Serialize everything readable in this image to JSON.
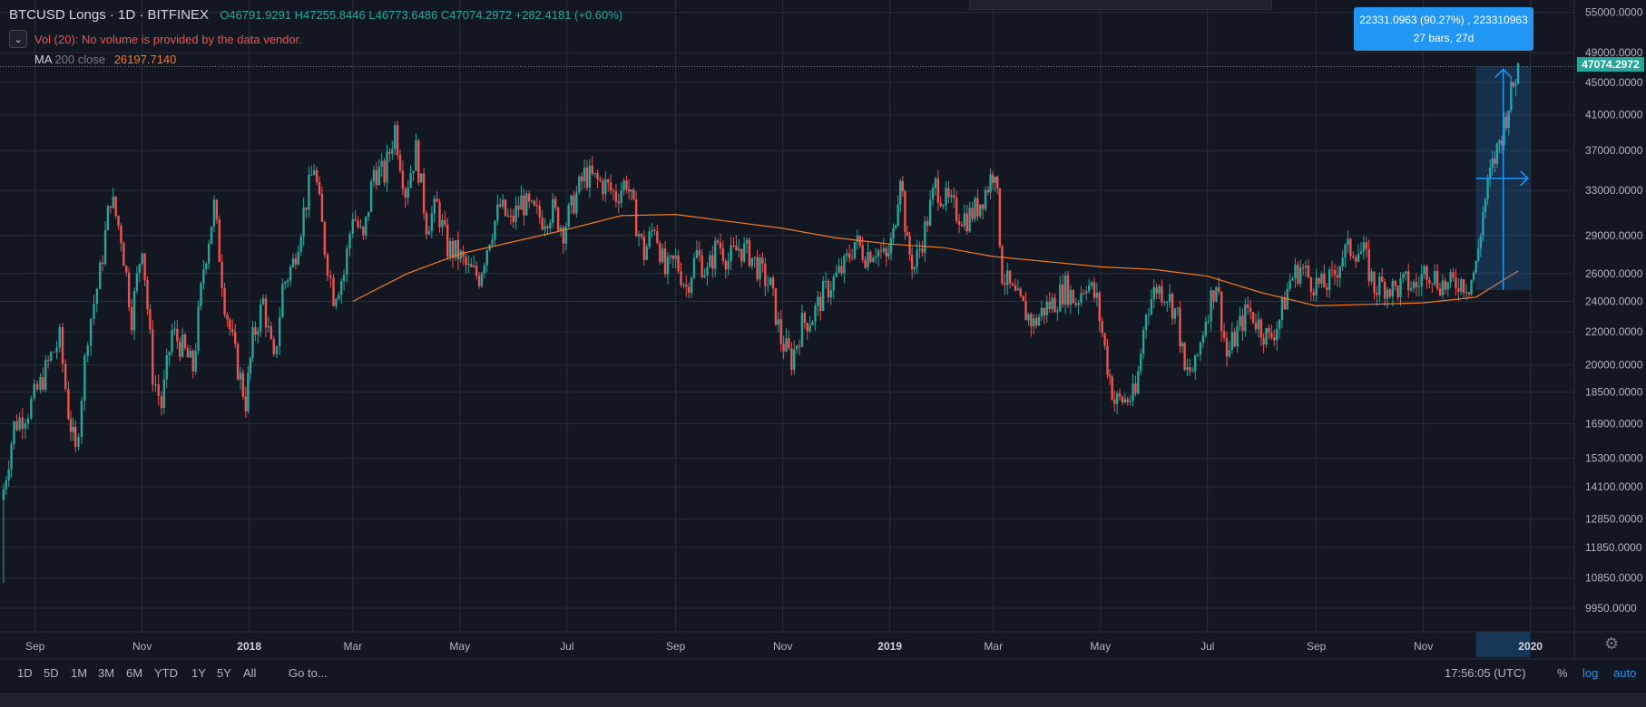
{
  "header": {
    "symbol": "BTCUSD Longs · 1D · BITFINEX",
    "open": "O46791.9291",
    "high": "H47255.8446",
    "low": "L46773.6486",
    "close": "C47074.2972",
    "change": "+282.4181 (+0.60%)"
  },
  "volume_note": "Vol (20): No volume is provided by the data vendor.",
  "ma": {
    "label": "MA",
    "params": "200 close",
    "value": "26197.7140"
  },
  "measure": {
    "line1": "22331.0963 (90.27%) , 223310963",
    "line2": "27 bars, 27d"
  },
  "last_price": "47074.2972",
  "bottom": {
    "ranges": [
      "1D",
      "5D",
      "1M",
      "3M",
      "6M",
      "YTD",
      "1Y",
      "5Y",
      "All"
    ],
    "goto": "Go to...",
    "clock": "17:56:05 (UTC)",
    "percent": "%",
    "log": "log",
    "auto": "auto"
  },
  "colors": {
    "bg": "#131722",
    "up": "#26a69a",
    "down": "#ef5350",
    "ma": "#f57c20",
    "grid": "#2a2e39",
    "accent": "#2196f3"
  },
  "chart_data": {
    "type": "line",
    "title": "BTCUSD Longs · 1D · BITFINEX",
    "scale": "log",
    "ylim": [
      9300,
      57000
    ],
    "y_ticks": [
      55000,
      49000,
      45000,
      41000,
      37000,
      33000,
      29000,
      26000,
      24000,
      22000,
      20000,
      18500,
      16900,
      15300,
      14100,
      12850,
      11850,
      10850,
      9950
    ],
    "x_ticks": [
      "Sep",
      "Nov",
      "2018",
      "Mar",
      "May",
      "Jul",
      "Sep",
      "Nov",
      "2019",
      "Mar",
      "May",
      "Jul",
      "Sep",
      "Nov",
      "2020"
    ],
    "x_range": [
      "2017-08-12",
      "2020-01-26"
    ],
    "series": [
      {
        "name": "BTCUSD Longs",
        "style": "candles",
        "points": [
          [
            "2017-08-14",
            14000
          ],
          [
            "2017-08-20",
            16800
          ],
          [
            "2017-08-28",
            17600
          ],
          [
            "2017-09-04",
            18900
          ],
          [
            "2017-09-10",
            20500
          ],
          [
            "2017-09-15",
            21500
          ],
          [
            "2017-09-20",
            17500
          ],
          [
            "2017-09-24",
            15500
          ],
          [
            "2017-10-01",
            22000
          ],
          [
            "2017-10-08",
            26000
          ],
          [
            "2017-10-14",
            32500
          ],
          [
            "2017-10-20",
            29000
          ],
          [
            "2017-10-26",
            23000
          ],
          [
            "2017-11-01",
            28500
          ],
          [
            "2017-11-07",
            19500
          ],
          [
            "2017-11-12",
            17800
          ],
          [
            "2017-11-18",
            22000
          ],
          [
            "2017-11-24",
            21000
          ],
          [
            "2017-11-30",
            19800
          ],
          [
            "2017-12-06",
            26500
          ],
          [
            "2017-12-12",
            31500
          ],
          [
            "2017-12-18",
            24000
          ],
          [
            "2017-12-24",
            20500
          ],
          [
            "2017-12-30",
            18000
          ],
          [
            "2018-01-03",
            21500
          ],
          [
            "2018-01-09",
            24000
          ],
          [
            "2018-01-15",
            20000
          ],
          [
            "2018-01-20",
            25000
          ],
          [
            "2018-01-26",
            26800
          ],
          [
            "2018-02-01",
            31000
          ],
          [
            "2018-02-07",
            35500
          ],
          [
            "2018-02-13",
            28000
          ],
          [
            "2018-02-18",
            24500
          ],
          [
            "2018-02-24",
            26000
          ],
          [
            "2018-03-01",
            31000
          ],
          [
            "2018-03-07",
            28500
          ],
          [
            "2018-03-13",
            35000
          ],
          [
            "2018-03-19",
            34500
          ],
          [
            "2018-03-25",
            39500
          ],
          [
            "2018-03-31",
            33000
          ],
          [
            "2018-04-06",
            37000
          ],
          [
            "2018-04-12",
            30000
          ],
          [
            "2018-04-18",
            31500
          ],
          [
            "2018-04-24",
            28000
          ],
          [
            "2018-04-30",
            27500
          ],
          [
            "2018-05-06",
            26200
          ],
          [
            "2018-05-12",
            25800
          ],
          [
            "2018-05-18",
            29000
          ],
          [
            "2018-05-24",
            31500
          ],
          [
            "2018-05-30",
            30000
          ],
          [
            "2018-06-05",
            32000
          ],
          [
            "2018-06-11",
            31000
          ],
          [
            "2018-06-17",
            30500
          ],
          [
            "2018-06-23",
            31200
          ],
          [
            "2018-06-29",
            29500
          ],
          [
            "2018-07-05",
            32000
          ],
          [
            "2018-07-11",
            34500
          ],
          [
            "2018-07-17",
            34000
          ],
          [
            "2018-07-23",
            33500
          ],
          [
            "2018-07-29",
            32500
          ],
          [
            "2018-08-04",
            34000
          ],
          [
            "2018-08-08",
            31000
          ],
          [
            "2018-08-14",
            27500
          ],
          [
            "2018-08-20",
            30000
          ],
          [
            "2018-08-26",
            26000
          ],
          [
            "2018-09-01",
            27000
          ],
          [
            "2018-09-07",
            25000
          ],
          [
            "2018-09-13",
            27500
          ],
          [
            "2018-09-19",
            26000
          ],
          [
            "2018-09-25",
            28500
          ],
          [
            "2018-10-01",
            27000
          ],
          [
            "2018-10-07",
            28000
          ],
          [
            "2018-10-13",
            27500
          ],
          [
            "2018-10-19",
            26200
          ],
          [
            "2018-10-25",
            25000
          ],
          [
            "2018-10-31",
            21500
          ],
          [
            "2018-11-06",
            20300
          ],
          [
            "2018-11-12",
            22500
          ],
          [
            "2018-11-18",
            23000
          ],
          [
            "2018-11-24",
            24500
          ],
          [
            "2018-11-30",
            25500
          ],
          [
            "2018-12-06",
            26500
          ],
          [
            "2018-12-12",
            28500
          ],
          [
            "2018-12-18",
            27500
          ],
          [
            "2018-12-24",
            28000
          ],
          [
            "2018-12-30",
            27000
          ],
          [
            "2019-01-03",
            29000
          ],
          [
            "2019-01-07",
            35000
          ],
          [
            "2019-01-11",
            28000
          ],
          [
            "2019-01-15",
            26500
          ],
          [
            "2019-01-21",
            29500
          ],
          [
            "2019-01-27",
            33500
          ],
          [
            "2019-02-02",
            32000
          ],
          [
            "2019-02-08",
            31000
          ],
          [
            "2019-02-14",
            30500
          ],
          [
            "2019-02-20",
            31500
          ],
          [
            "2019-02-26",
            33500
          ],
          [
            "2019-03-02",
            35500
          ],
          [
            "2019-03-06",
            26000
          ],
          [
            "2019-03-12",
            24500
          ],
          [
            "2019-03-18",
            23500
          ],
          [
            "2019-03-24",
            22500
          ],
          [
            "2019-03-30",
            23500
          ],
          [
            "2019-04-05",
            24000
          ],
          [
            "2019-04-11",
            25000
          ],
          [
            "2019-04-17",
            24000
          ],
          [
            "2019-04-23",
            25500
          ],
          [
            "2019-04-29",
            24000
          ],
          [
            "2019-05-05",
            20000
          ],
          [
            "2019-05-09",
            18000
          ],
          [
            "2019-05-15",
            18100
          ],
          [
            "2019-05-21",
            18300
          ],
          [
            "2019-05-27",
            23500
          ],
          [
            "2019-06-02",
            25000
          ],
          [
            "2019-06-08",
            24500
          ],
          [
            "2019-06-14",
            23000
          ],
          [
            "2019-06-18",
            19500
          ],
          [
            "2019-06-24",
            19800
          ],
          [
            "2019-06-30",
            23000
          ],
          [
            "2019-07-06",
            25500
          ],
          [
            "2019-07-12",
            20500
          ],
          [
            "2019-07-18",
            22000
          ],
          [
            "2019-07-24",
            23500
          ],
          [
            "2019-07-30",
            22500
          ],
          [
            "2019-08-05",
            21500
          ],
          [
            "2019-08-11",
            22800
          ],
          [
            "2019-08-17",
            25500
          ],
          [
            "2019-08-23",
            26500
          ],
          [
            "2019-08-29",
            25500
          ],
          [
            "2019-09-04",
            25000
          ],
          [
            "2019-09-10",
            25500
          ],
          [
            "2019-09-16",
            27500
          ],
          [
            "2019-09-22",
            28000
          ],
          [
            "2019-09-28",
            27500
          ],
          [
            "2019-10-04",
            25000
          ],
          [
            "2019-10-10",
            25200
          ],
          [
            "2019-10-16",
            24800
          ],
          [
            "2019-10-22",
            25300
          ],
          [
            "2019-10-28",
            25000
          ],
          [
            "2019-11-03",
            26500
          ],
          [
            "2019-11-09",
            25500
          ],
          [
            "2019-11-15",
            25000
          ],
          [
            "2019-11-21",
            25500
          ],
          [
            "2019-11-27",
            25200
          ],
          [
            "2019-12-01",
            26500
          ],
          [
            "2019-12-05",
            31000
          ],
          [
            "2019-12-09",
            34500
          ],
          [
            "2019-12-13",
            37000
          ],
          [
            "2019-12-17",
            40000
          ],
          [
            "2019-12-21",
            43500
          ],
          [
            "2019-12-25",
            47074
          ]
        ]
      },
      {
        "name": "MA 200 close",
        "style": "line",
        "points": [
          [
            "2018-03-01",
            24000
          ],
          [
            "2018-04-01",
            26000
          ],
          [
            "2018-05-01",
            27500
          ],
          [
            "2018-06-01",
            28500
          ],
          [
            "2018-07-01",
            29500
          ],
          [
            "2018-08-01",
            30700
          ],
          [
            "2018-09-01",
            30800
          ],
          [
            "2018-10-01",
            30200
          ],
          [
            "2018-11-01",
            29600
          ],
          [
            "2018-12-01",
            28800
          ],
          [
            "2019-01-01",
            28300
          ],
          [
            "2019-02-01",
            28000
          ],
          [
            "2019-03-01",
            27300
          ],
          [
            "2019-04-01",
            26900
          ],
          [
            "2019-05-01",
            26500
          ],
          [
            "2019-06-01",
            26300
          ],
          [
            "2019-07-01",
            25800
          ],
          [
            "2019-08-01",
            24600
          ],
          [
            "2019-09-01",
            23700
          ],
          [
            "2019-10-01",
            23800
          ],
          [
            "2019-11-01",
            23900
          ],
          [
            "2019-12-01",
            24300
          ],
          [
            "2019-12-25",
            26197.714
          ]
        ]
      }
    ]
  }
}
